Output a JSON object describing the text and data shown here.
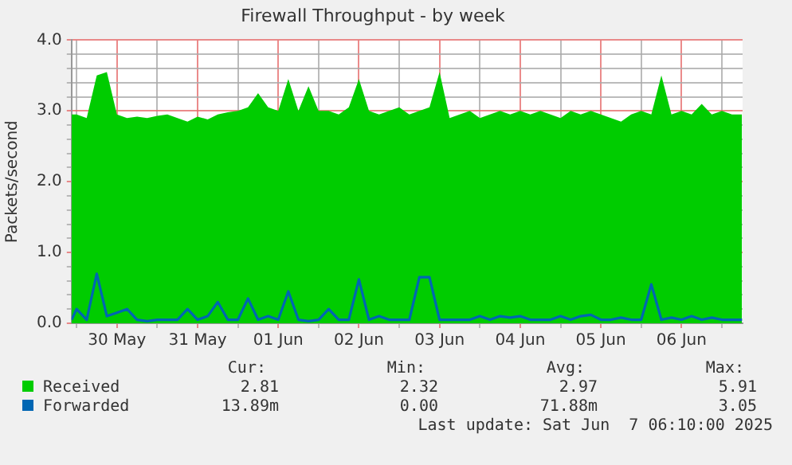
{
  "chart_data": {
    "type": "area",
    "title": "Firewall Throughput - by week",
    "ylabel": "Packets/second",
    "x": [
      "2025-05-29T22:30",
      "2025-05-30T00:00",
      "2025-05-30T03:00",
      "2025-05-30T06:00",
      "2025-05-30T09:00",
      "2025-05-30T12:00",
      "2025-05-30T15:00",
      "2025-05-30T18:00",
      "2025-05-30T21:00",
      "2025-05-31T00:00",
      "2025-05-31T03:00",
      "2025-05-31T06:00",
      "2025-05-31T09:00",
      "2025-05-31T12:00",
      "2025-05-31T15:00",
      "2025-05-31T18:00",
      "2025-05-31T21:00",
      "2025-06-01T00:00",
      "2025-06-01T03:00",
      "2025-06-01T06:00",
      "2025-06-01T09:00",
      "2025-06-01T12:00",
      "2025-06-01T15:00",
      "2025-06-01T18:00",
      "2025-06-01T21:00",
      "2025-06-02T00:00",
      "2025-06-02T03:00",
      "2025-06-02T06:00",
      "2025-06-02T09:00",
      "2025-06-02T12:00",
      "2025-06-02T15:00",
      "2025-06-02T18:00",
      "2025-06-02T21:00",
      "2025-06-03T00:00",
      "2025-06-03T03:00",
      "2025-06-03T06:00",
      "2025-06-03T09:00",
      "2025-06-03T12:00",
      "2025-06-03T15:00",
      "2025-06-03T18:00",
      "2025-06-03T21:00",
      "2025-06-04T00:00",
      "2025-06-04T03:00",
      "2025-06-04T06:00",
      "2025-06-04T09:00",
      "2025-06-04T12:00",
      "2025-06-04T15:00",
      "2025-06-04T18:00",
      "2025-06-04T21:00",
      "2025-06-05T00:00",
      "2025-06-05T03:00",
      "2025-06-05T06:00",
      "2025-06-05T09:00",
      "2025-06-05T12:00",
      "2025-06-05T15:00",
      "2025-06-05T18:00",
      "2025-06-05T21:00",
      "2025-06-06T00:00",
      "2025-06-06T03:00",
      "2025-06-06T06:00",
      "2025-06-06T09:00",
      "2025-06-06T12:00",
      "2025-06-06T15:00",
      "2025-06-06T18:00",
      "2025-06-06T21:00",
      "2025-06-07T00:00",
      "2025-06-07T03:00",
      "2025-06-07T06:00"
    ],
    "series": [
      {
        "name": "Received",
        "color": "#00cc00",
        "values": [
          2.95,
          2.95,
          2.9,
          3.5,
          3.55,
          2.95,
          2.9,
          2.92,
          2.9,
          2.93,
          2.95,
          2.9,
          2.85,
          2.92,
          2.88,
          2.95,
          2.98,
          3.0,
          3.05,
          3.25,
          3.05,
          3.0,
          3.45,
          3.0,
          3.35,
          3.0,
          3.0,
          2.95,
          3.05,
          3.45,
          3.0,
          2.95,
          3.0,
          3.05,
          2.95,
          3.0,
          3.05,
          3.55,
          2.9,
          2.95,
          3.0,
          2.9,
          2.95,
          3.0,
          2.95,
          3.0,
          2.95,
          3.0,
          2.95,
          2.9,
          3.0,
          2.95,
          3.0,
          2.95,
          2.9,
          2.85,
          2.95,
          3.0,
          2.95,
          3.5,
          2.95,
          3.0,
          2.95,
          3.1,
          2.95,
          3.0,
          2.95,
          2.95
        ]
      },
      {
        "name": "Forwarded",
        "color": "#0066b3",
        "type": "line",
        "values": [
          0.05,
          0.2,
          0.05,
          0.7,
          0.1,
          0.15,
          0.2,
          0.05,
          0.03,
          0.05,
          0.05,
          0.05,
          0.2,
          0.05,
          0.1,
          0.3,
          0.05,
          0.05,
          0.35,
          0.05,
          0.1,
          0.05,
          0.45,
          0.05,
          0.03,
          0.05,
          0.2,
          0.05,
          0.05,
          0.62,
          0.05,
          0.1,
          0.05,
          0.05,
          0.05,
          0.65,
          0.65,
          0.05,
          0.05,
          0.05,
          0.05,
          0.1,
          0.05,
          0.1,
          0.08,
          0.1,
          0.05,
          0.05,
          0.05,
          0.1,
          0.05,
          0.1,
          0.12,
          0.05,
          0.05,
          0.08,
          0.05,
          0.05,
          0.55,
          0.05,
          0.08,
          0.05,
          0.1,
          0.05,
          0.08,
          0.05,
          0.05,
          0.05
        ]
      }
    ],
    "xlim": [
      "2025-05-29T22:30",
      "2025-06-07T06:10"
    ],
    "xticks": [
      {
        "value": "2025-05-30T00:00",
        "label": null
      },
      {
        "value": "2025-05-30T12:00",
        "label": "30 May"
      },
      {
        "value": "2025-05-31T00:00",
        "label": null
      },
      {
        "value": "2025-05-31T12:00",
        "label": "31 May"
      },
      {
        "value": "2025-06-01T00:00",
        "label": null
      },
      {
        "value": "2025-06-01T12:00",
        "label": "01 Jun"
      },
      {
        "value": "2025-06-02T00:00",
        "label": null
      },
      {
        "value": "2025-06-02T12:00",
        "label": "02 Jun"
      },
      {
        "value": "2025-06-03T00:00",
        "label": null
      },
      {
        "value": "2025-06-03T12:00",
        "label": "03 Jun"
      },
      {
        "value": "2025-06-04T00:00",
        "label": null
      },
      {
        "value": "2025-06-04T12:00",
        "label": "04 Jun"
      },
      {
        "value": "2025-06-05T00:00",
        "label": null
      },
      {
        "value": "2025-06-05T12:00",
        "label": "05 Jun"
      },
      {
        "value": "2025-06-06T00:00",
        "label": null
      },
      {
        "value": "2025-06-06T12:00",
        "label": "06 Jun"
      },
      {
        "value": "2025-06-07T00:00",
        "label": null
      }
    ],
    "ylim": [
      0,
      4
    ],
    "yticks": [
      {
        "value": 0,
        "label": "0.0"
      },
      {
        "value": 0.2,
        "label": null
      },
      {
        "value": 0.4,
        "label": null
      },
      {
        "value": 0.6,
        "label": null
      },
      {
        "value": 0.8,
        "label": null
      },
      {
        "value": 1,
        "label": "1.0"
      },
      {
        "value": 1.2,
        "label": null
      },
      {
        "value": 1.4,
        "label": null
      },
      {
        "value": 1.6,
        "label": null
      },
      {
        "value": 1.8,
        "label": null
      },
      {
        "value": 2,
        "label": "2.0"
      },
      {
        "value": 2.2,
        "label": null
      },
      {
        "value": 2.4,
        "label": null
      },
      {
        "value": 2.6,
        "label": null
      },
      {
        "value": 2.8,
        "label": null
      },
      {
        "value": 3,
        "label": "3.0"
      },
      {
        "value": 3.2,
        "label": null
      },
      {
        "value": 3.4,
        "label": null
      },
      {
        "value": 3.6,
        "label": null
      },
      {
        "value": 3.8,
        "label": null
      },
      {
        "value": 4,
        "label": "4.0"
      }
    ],
    "grid": true,
    "legend": "bottom",
    "annotations": [
      "Cur:",
      "Min:",
      "Avg:",
      "Max:",
      "2.81",
      "2.32",
      "2.97",
      "5.91",
      "13.89m",
      "0.00",
      "71.88m",
      "3.05",
      "Last update: Sat Jun  7 06:10:00 2025"
    ]
  }
}
